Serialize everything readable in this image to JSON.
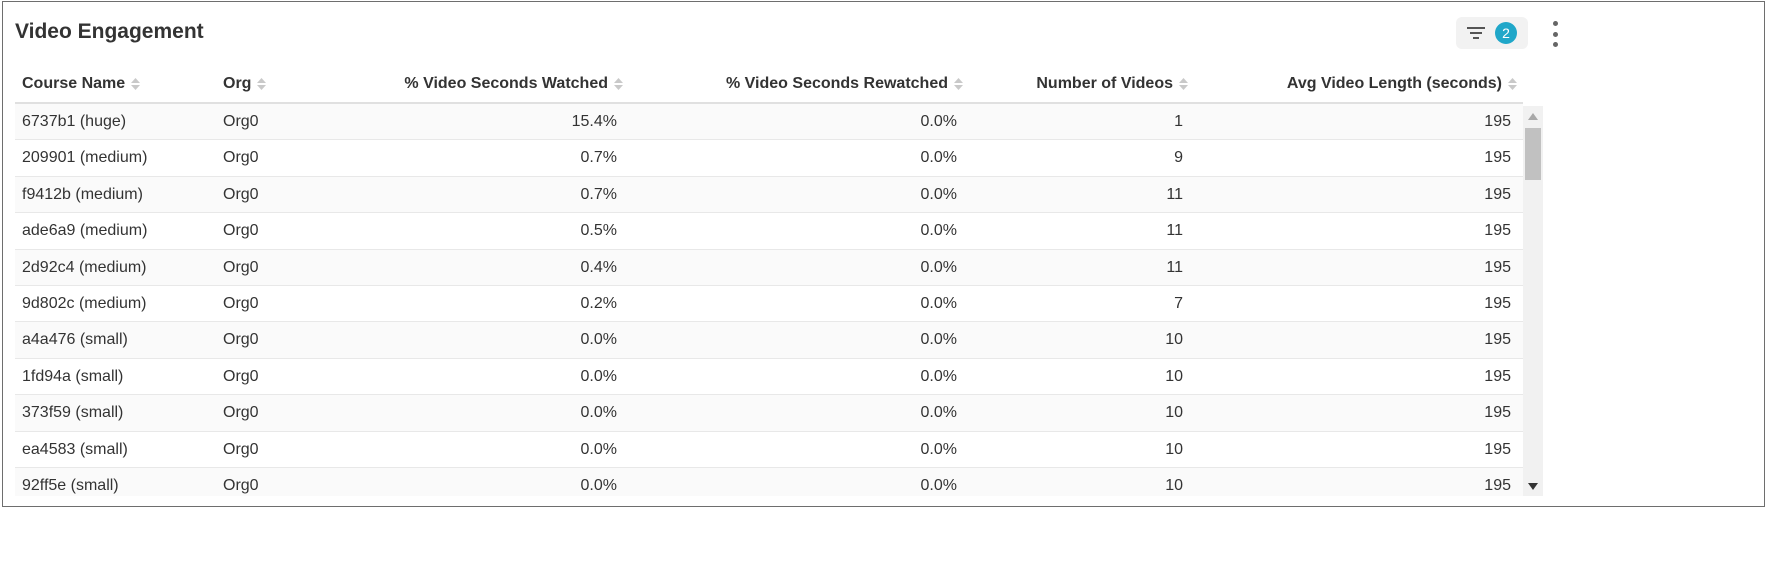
{
  "title": "Video Engagement",
  "filter": {
    "icon": "filter-icon",
    "count": "2"
  },
  "menu": {
    "icon": "kebab-menu-icon"
  },
  "columns": [
    "Course Name",
    "Org",
    "% Video Seconds Watched",
    "% Video Seconds Rewatched",
    "Number of Videos",
    "Avg Video Length (seconds)"
  ],
  "rows": [
    [
      "6737b1 (huge)",
      "Org0",
      "15.4%",
      "0.0%",
      "1",
      "195"
    ],
    [
      "209901 (medium)",
      "Org0",
      "0.7%",
      "0.0%",
      "9",
      "195"
    ],
    [
      "f9412b (medium)",
      "Org0",
      "0.7%",
      "0.0%",
      "11",
      "195"
    ],
    [
      "ade6a9 (medium)",
      "Org0",
      "0.5%",
      "0.0%",
      "11",
      "195"
    ],
    [
      "2d92c4 (medium)",
      "Org0",
      "0.4%",
      "0.0%",
      "11",
      "195"
    ],
    [
      "9d802c (medium)",
      "Org0",
      "0.2%",
      "0.0%",
      "7",
      "195"
    ],
    [
      "a4a476 (small)",
      "Org0",
      "0.0%",
      "0.0%",
      "10",
      "195"
    ],
    [
      "1fd94a (small)",
      "Org0",
      "0.0%",
      "0.0%",
      "10",
      "195"
    ],
    [
      "373f59 (small)",
      "Org0",
      "0.0%",
      "0.0%",
      "10",
      "195"
    ],
    [
      "ea4583 (small)",
      "Org0",
      "0.0%",
      "0.0%",
      "10",
      "195"
    ],
    [
      "92ff5e (small)",
      "Org0",
      "0.0%",
      "0.0%",
      "10",
      "195"
    ]
  ],
  "colors": {
    "badge": "#20a7c9",
    "border": "#6e6e6e",
    "scroll_thumb": "#c1c1c1"
  }
}
